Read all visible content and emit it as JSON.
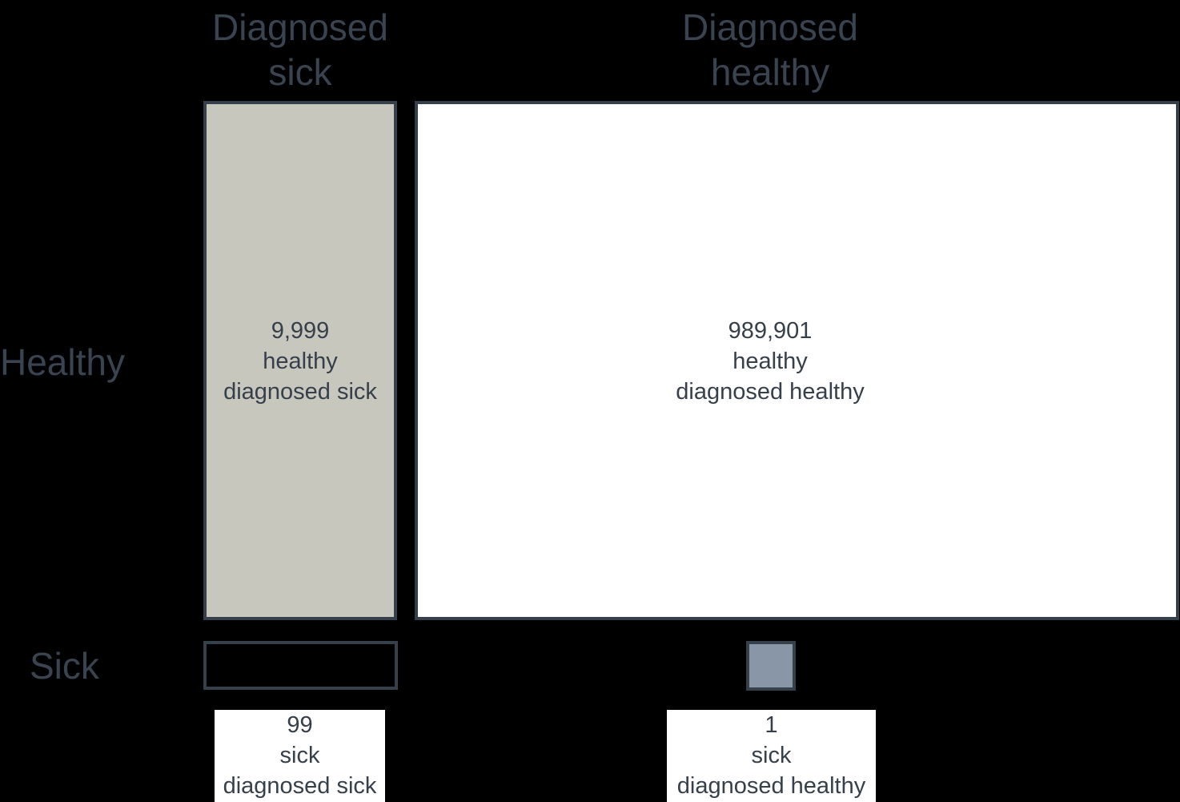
{
  "columns": {
    "sick": {
      "line1": "Diagnosed",
      "line2": "sick"
    },
    "healthy": {
      "line1": "Diagnosed",
      "line2": "healthy"
    }
  },
  "rows": {
    "healthy": "Healthy",
    "sick": "Sick"
  },
  "cells": {
    "healthy_diag_sick": {
      "count": "9,999",
      "line2": "healthy",
      "line3": "diagnosed sick"
    },
    "healthy_diag_healthy": {
      "count": "989,901",
      "line2": "healthy",
      "line3": "diagnosed healthy"
    },
    "sick_diag_sick": {
      "count": "99",
      "line2": "sick",
      "line3": "diagnosed sick"
    },
    "sick_diag_healthy": {
      "count": "1",
      "line2": "sick",
      "line3": "diagnosed healthy"
    }
  },
  "colors": {
    "healthy_diag_sick_fill": "#c7c7be",
    "healthy_diag_healthy_fill": "#ffffff",
    "sick_diag_sick_fill": "#000000",
    "sick_diag_healthy_fill": "#8896a8",
    "border": "#36404b",
    "text": "#3a4450"
  }
}
